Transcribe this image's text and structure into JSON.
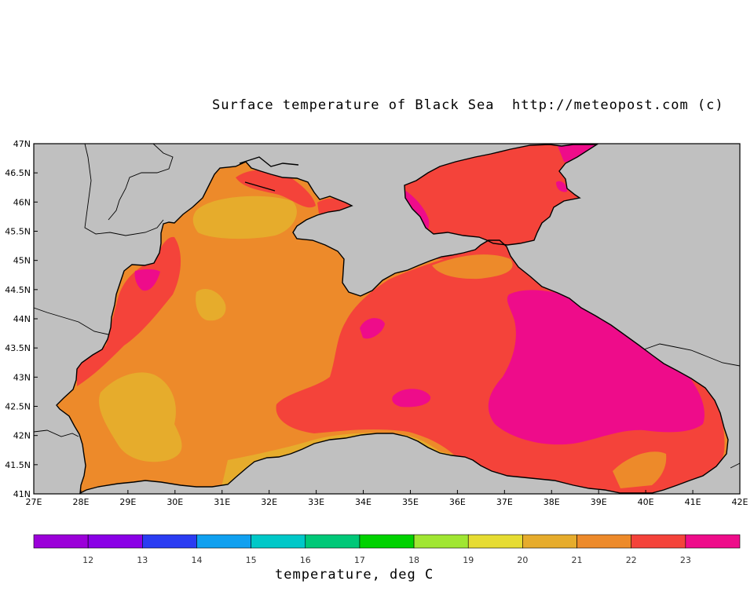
{
  "title": "Surface temperature of Black Sea  http://meteopost.com (c)",
  "colors": {
    "land": "#c0c0c0",
    "t20": "#e6ac2c",
    "t21": "#ed8a2a",
    "t22": "#f4433a",
    "t23": "#ee0c8a",
    "coast": "#000000"
  },
  "lat_ticks": [
    "47N",
    "46.5N",
    "46N",
    "45.5N",
    "45N",
    "44.5N",
    "44N",
    "43.5N",
    "43N",
    "42.5N",
    "42N",
    "41.5N",
    "41N"
  ],
  "lon_ticks": [
    "27E",
    "28E",
    "29E",
    "30E",
    "31E",
    "32E",
    "33E",
    "34E",
    "35E",
    "36E",
    "37E",
    "38E",
    "39E",
    "40E",
    "41E",
    "42E"
  ],
  "map_extent": {
    "lon": [
      27,
      42
    ],
    "lat": [
      41,
      47
    ]
  },
  "colorbar": {
    "title": "temperature, deg C",
    "labels": [
      "12",
      "13",
      "14",
      "15",
      "16",
      "17",
      "18",
      "19",
      "20",
      "21",
      "22",
      "23"
    ],
    "colors": [
      "#9b00d9",
      "#8a00e6",
      "#2a3cf2",
      "#10a0f0",
      "#00c8c8",
      "#00c878",
      "#00d200",
      "#a0e632",
      "#e6dc32",
      "#e6ac2c",
      "#ed8a2a",
      "#f4433a",
      "#ee0c8a"
    ]
  }
}
